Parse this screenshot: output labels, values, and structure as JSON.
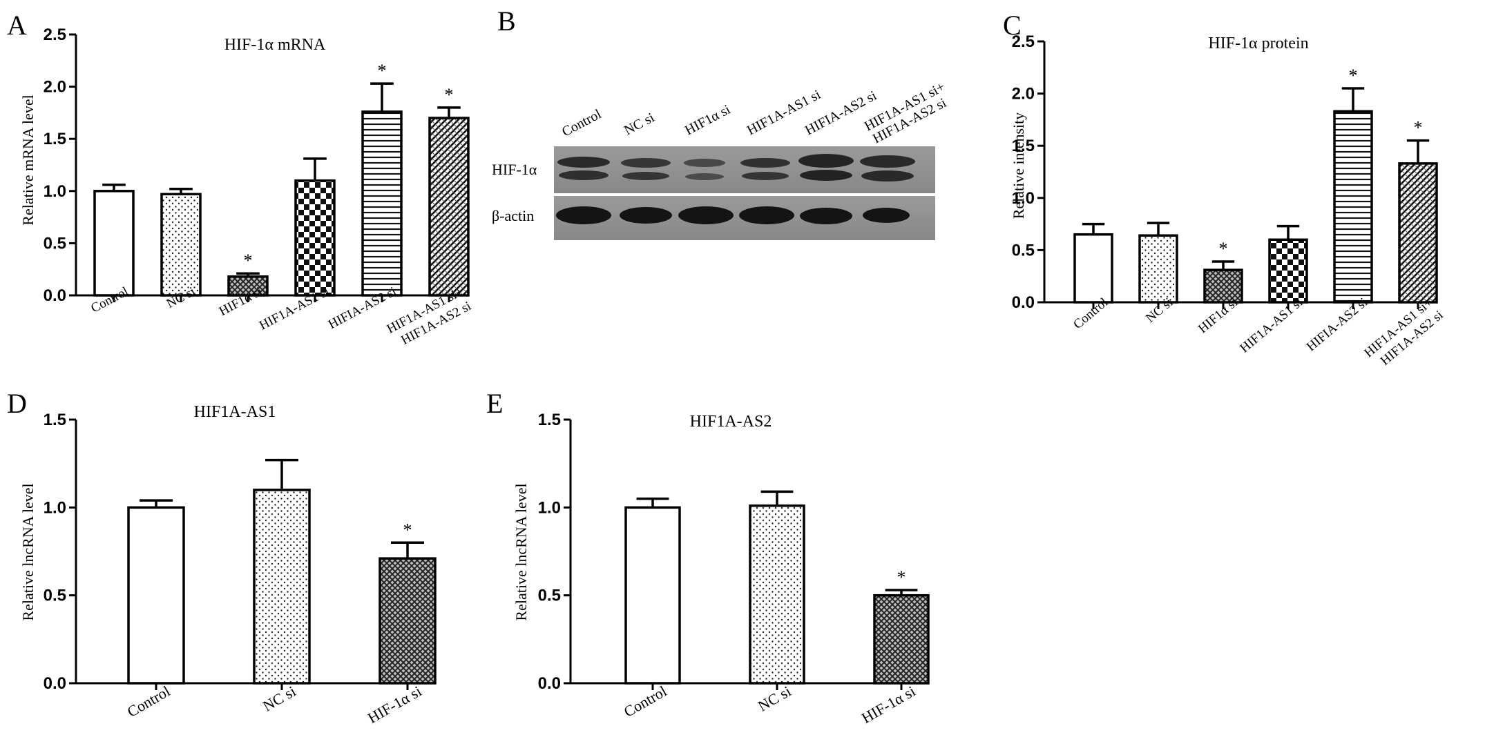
{
  "panels": {
    "A": {
      "letter": "A"
    },
    "B": {
      "letter": "B",
      "lanes": [
        "Control",
        "NC si",
        "HIF1α si",
        "HIF1A-AS1 si",
        "HIFIA-AS2 si",
        "HIF1A-AS1 si+",
        "HIF1A-AS2 si"
      ],
      "row_labels": [
        "HIF-1α",
        "β-actin"
      ]
    },
    "C": {
      "letter": "C"
    },
    "D": {
      "letter": "D"
    },
    "E": {
      "letter": "E"
    }
  },
  "chart_data": [
    {
      "id": "A",
      "type": "bar",
      "title": "HIF-1α mRNA",
      "xlabel": "",
      "ylabel": "Relative mRNA level",
      "ylim": [
        0,
        2.5
      ],
      "yticks": [
        "0.0",
        "0.5",
        "1.0",
        "1.5",
        "2.0",
        "2.5"
      ],
      "categories": [
        [
          "Control"
        ],
        [
          "NC si"
        ],
        [
          "HIF1α si"
        ],
        [
          "HIF1A-AS1 si"
        ],
        [
          "HIFIA-AS2 si"
        ],
        [
          "HIF1A-AS1 si+",
          "HIF1A-AS2 si"
        ]
      ],
      "values": [
        1.0,
        0.97,
        0.18,
        1.1,
        1.76,
        1.7
      ],
      "errors": [
        0.06,
        0.05,
        0.03,
        0.21,
        0.27,
        0.1
      ],
      "significant": [
        false,
        false,
        true,
        false,
        true,
        true
      ],
      "marker": "*",
      "patterns": [
        "blank",
        "dots",
        "crosshatch",
        "checker",
        "hlines",
        "diag"
      ]
    },
    {
      "id": "C",
      "type": "bar",
      "title": "HIF-1α protein",
      "xlabel": "",
      "ylabel": "Relative intensity",
      "ylim": [
        0,
        2.5
      ],
      "yticks": [
        "0.0",
        "0.5",
        "1.0",
        "1.5",
        "2.0",
        "2.5"
      ],
      "categories": [
        [
          "Control"
        ],
        [
          "NC si"
        ],
        [
          "HIF1α si"
        ],
        [
          "HIF1A-AS1 si"
        ],
        [
          "HIFIA-AS2 si"
        ],
        [
          "HIF1A-AS1 si+",
          "HIF1A-AS2 si"
        ]
      ],
      "values": [
        0.65,
        0.64,
        0.31,
        0.6,
        1.83,
        1.33
      ],
      "errors": [
        0.1,
        0.12,
        0.08,
        0.13,
        0.22,
        0.22
      ],
      "significant": [
        false,
        false,
        true,
        false,
        true,
        true
      ],
      "marker": "*",
      "patterns": [
        "blank",
        "dots",
        "crosshatch",
        "checker",
        "hlines",
        "diag"
      ]
    },
    {
      "id": "D",
      "type": "bar",
      "title": "HIF1A-AS1",
      "xlabel": "",
      "ylabel": "Relative lncRNA level",
      "ylim": [
        0,
        1.5
      ],
      "yticks": [
        "0.0",
        "0.5",
        "1.0",
        "1.5"
      ],
      "categories": [
        [
          "Control"
        ],
        [
          "NC si"
        ],
        [
          "HIF-1α si"
        ]
      ],
      "values": [
        1.0,
        1.1,
        0.71
      ],
      "errors": [
        0.04,
        0.17,
        0.09
      ],
      "significant": [
        false,
        false,
        true
      ],
      "marker": "*",
      "patterns": [
        "blank",
        "dots",
        "crosshatch"
      ]
    },
    {
      "id": "E",
      "type": "bar",
      "title": "HIF1A-AS2",
      "xlabel": "",
      "ylabel": "Relative lncRNA level",
      "ylim": [
        0,
        1.5
      ],
      "yticks": [
        "0.0",
        "0.5",
        "1.0",
        "1.5"
      ],
      "categories": [
        [
          "Control"
        ],
        [
          "NC si"
        ],
        [
          "HIF-1α si"
        ]
      ],
      "values": [
        1.0,
        1.01,
        0.5
      ],
      "errors": [
        0.05,
        0.08,
        0.03
      ],
      "significant": [
        false,
        false,
        true
      ],
      "marker": "*",
      "patterns": [
        "blank",
        "dots",
        "crosshatch"
      ]
    }
  ]
}
